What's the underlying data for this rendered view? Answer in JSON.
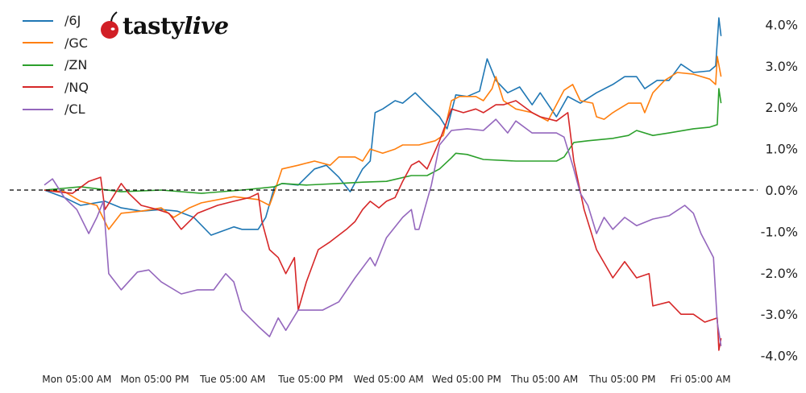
{
  "logo": {
    "brand": "tastylive",
    "part1": "tasty",
    "part2": "live"
  },
  "chart_data": {
    "type": "line",
    "title": "",
    "xlabel": "",
    "ylabel": "",
    "ylim": [
      -4.0,
      4.0
    ],
    "y_ticks": [
      "4.0%",
      "3.0%",
      "2.0%",
      "1.0%",
      "0.0%",
      "-1.0%",
      "-2.0%",
      "-3.0%",
      "-4.0%"
    ],
    "y_tick_values": [
      4,
      3,
      2,
      1,
      0,
      -1,
      -2,
      -3,
      -4
    ],
    "y_axis_side": "right",
    "x_ticks": [
      "Mon 05:00 AM",
      "Mon 05:00 PM",
      "Tue 05:00 AM",
      "Tue 05:00 PM",
      "Wed 05:00 AM",
      "Wed 05:00 PM",
      "Thu 05:00 AM",
      "Thu 05:00 PM",
      "Fri 05:00 AM"
    ],
    "reference_line": {
      "y": 0,
      "style": "dashed",
      "color": "#000000"
    },
    "grid": false,
    "legend_position": "top-left",
    "series": [
      {
        "name": "/6J",
        "color": "#1f77b4",
        "points": [
          [
            "Mon 00:00",
            0
          ],
          [
            "Mon 03:05",
            -0.18
          ],
          [
            "Mon 05:35",
            -0.37
          ],
          [
            "Mon 09:20",
            -0.27
          ],
          [
            "Mon 11:50",
            -0.43
          ],
          [
            "Mon 14:55",
            -0.51
          ],
          [
            "Mon 18:00",
            -0.47
          ],
          [
            "Mon 20:30",
            -0.51
          ],
          [
            "Mon 23:00",
            -0.66
          ],
          [
            "Tue 01:40",
            -1.09
          ],
          [
            "Tue 05:10",
            -0.89
          ],
          [
            "Tue 06:25",
            -0.95
          ],
          [
            "Tue 08:55",
            -0.95
          ],
          [
            "Tue 10:05",
            -0.66
          ],
          [
            "Tue 11:25",
            0.08
          ],
          [
            "Tue 12:35",
            0.16
          ],
          [
            "Tue 15:05",
            0.12
          ],
          [
            "Tue 17:35",
            0.51
          ],
          [
            "Tue 19:25",
            0.6
          ],
          [
            "Tue 21:20",
            0.31
          ],
          [
            "Tue 23:05",
            -0.04
          ],
          [
            "Wed 01:00",
            0.51
          ],
          [
            "Wed 02:10",
            0.7
          ],
          [
            "Wed 02:55",
            1.87
          ],
          [
            "Wed 04:05",
            1.96
          ],
          [
            "Wed 06:00",
            2.16
          ],
          [
            "Wed 07:10",
            2.1
          ],
          [
            "Wed 09:05",
            2.35
          ],
          [
            "Wed 10:55",
            2.06
          ],
          [
            "Wed 12:50",
            1.77
          ],
          [
            "Wed 14:00",
            1.48
          ],
          [
            "Wed 15:20",
            2.3
          ],
          [
            "Wed 17:05",
            2.26
          ],
          [
            "Wed 19:00",
            2.39
          ],
          [
            "Wed 20:10",
            3.17
          ],
          [
            "Wed 21:30",
            2.65
          ],
          [
            "Wed 23:20",
            2.35
          ],
          [
            "Thu 01:10",
            2.49
          ],
          [
            "Thu 03:05",
            2.06
          ],
          [
            "Thu 04:20",
            2.35
          ],
          [
            "Thu 06:50",
            1.77
          ],
          [
            "Thu 08:35",
            2.26
          ],
          [
            "Thu 10:30",
            2.1
          ],
          [
            "Thu 13:00",
            2.35
          ],
          [
            "Thu 15:30",
            2.55
          ],
          [
            "Thu 17:20",
            2.74
          ],
          [
            "Thu 19:10",
            2.74
          ],
          [
            "Thu 20:25",
            2.45
          ],
          [
            "Thu 22:20",
            2.65
          ],
          [
            "Fri 00:10",
            2.65
          ],
          [
            "Fri 02:00",
            3.04
          ],
          [
            "Fri 03:55",
            2.84
          ],
          [
            "Fri 06:25",
            2.88
          ],
          [
            "Fri 07:20",
            3.0
          ],
          [
            "Fri 07:50",
            4.16
          ],
          [
            "Fri 08:10",
            3.72
          ]
        ]
      },
      {
        "name": "/GC",
        "color": "#ff7f0e",
        "points": [
          [
            "Mon 00:00",
            0
          ],
          [
            "Mon 03:05",
            -0.04
          ],
          [
            "Mon 05:35",
            -0.27
          ],
          [
            "Mon 08:05",
            -0.37
          ],
          [
            "Mon 09:55",
            -0.95
          ],
          [
            "Mon 11:50",
            -0.56
          ],
          [
            "Mon 14:55",
            -0.51
          ],
          [
            "Mon 18:00",
            -0.43
          ],
          [
            "Mon 19:55",
            -0.66
          ],
          [
            "Mon 22:20",
            -0.43
          ],
          [
            "Tue 00:10",
            -0.31
          ],
          [
            "Tue 05:10",
            -0.16
          ],
          [
            "Tue 08:55",
            -0.23
          ],
          [
            "Tue 10:40",
            -0.37
          ],
          [
            "Tue 11:25",
            -0.04
          ],
          [
            "Tue 12:35",
            0.51
          ],
          [
            "Tue 15:05",
            0.6
          ],
          [
            "Tue 17:35",
            0.7
          ],
          [
            "Tue 20:00",
            0.6
          ],
          [
            "Tue 21:20",
            0.8
          ],
          [
            "Tue 23:50",
            0.8
          ],
          [
            "Wed 01:00",
            0.7
          ],
          [
            "Wed 02:10",
            0.99
          ],
          [
            "Wed 04:05",
            0.89
          ],
          [
            "Wed 06:00",
            0.99
          ],
          [
            "Wed 07:10",
            1.09
          ],
          [
            "Wed 09:40",
            1.09
          ],
          [
            "Wed 12:10",
            1.19
          ],
          [
            "Wed 13:25",
            1.32
          ],
          [
            "Wed 14:40",
            2.16
          ],
          [
            "Wed 15:55",
            2.26
          ],
          [
            "Wed 18:25",
            2.26
          ],
          [
            "Wed 19:35",
            2.16
          ],
          [
            "Wed 20:55",
            2.45
          ],
          [
            "Wed 21:30",
            2.74
          ],
          [
            "Wed 22:40",
            2.16
          ],
          [
            "Thu 00:35",
            1.96
          ],
          [
            "Thu 03:05",
            1.87
          ],
          [
            "Thu 05:30",
            1.67
          ],
          [
            "Thu 08:00",
            2.41
          ],
          [
            "Thu 09:20",
            2.55
          ],
          [
            "Thu 10:30",
            2.16
          ],
          [
            "Thu 12:25",
            2.1
          ],
          [
            "Thu 13:00",
            1.77
          ],
          [
            "Thu 14:10",
            1.71
          ],
          [
            "Thu 15:30",
            1.87
          ],
          [
            "Thu 17:55",
            2.1
          ],
          [
            "Thu 19:50",
            2.1
          ],
          [
            "Thu 20:25",
            1.87
          ],
          [
            "Thu 21:40",
            2.35
          ],
          [
            "Thu 23:30",
            2.65
          ],
          [
            "Fri 01:25",
            2.84
          ],
          [
            "Fri 03:55",
            2.8
          ],
          [
            "Fri 06:25",
            2.68
          ],
          [
            "Fri 07:20",
            2.55
          ],
          [
            "Fri 07:35",
            3.23
          ],
          [
            "Fri 08:10",
            2.74
          ]
        ]
      },
      {
        "name": "/ZN",
        "color": "#2ca02c",
        "points": [
          [
            "Mon 00:00",
            0
          ],
          [
            "Mon 05:35",
            0.08
          ],
          [
            "Mon 11:50",
            -0.04
          ],
          [
            "Mon 18:00",
            0
          ],
          [
            "Tue 00:10",
            -0.08
          ],
          [
            "Tue 06:25",
            0
          ],
          [
            "Tue 11:25",
            0.08
          ],
          [
            "Tue 12:35",
            0.16
          ],
          [
            "Tue 16:20",
            0.12
          ],
          [
            "Tue 21:20",
            0.16
          ],
          [
            "Wed 01:00",
            0.19
          ],
          [
            "Wed 04:40",
            0.21
          ],
          [
            "Wed 08:30",
            0.35
          ],
          [
            "Wed 10:55",
            0.35
          ],
          [
            "Wed 12:50",
            0.51
          ],
          [
            "Wed 14:40",
            0.78
          ],
          [
            "Wed 15:20",
            0.89
          ],
          [
            "Wed 17:05",
            0.86
          ],
          [
            "Wed 19:35",
            0.74
          ],
          [
            "Thu 00:35",
            0.7
          ],
          [
            "Thu 03:05",
            0.7
          ],
          [
            "Thu 06:50",
            0.7
          ],
          [
            "Thu 08:00",
            0.8
          ],
          [
            "Thu 09:30",
            1.15
          ],
          [
            "Thu 11:40",
            1.19
          ],
          [
            "Thu 15:30",
            1.25
          ],
          [
            "Thu 17:55",
            1.32
          ],
          [
            "Thu 19:10",
            1.44
          ],
          [
            "Thu 21:40",
            1.32
          ],
          [
            "Fri 00:10",
            1.38
          ],
          [
            "Fri 03:55",
            1.48
          ],
          [
            "Fri 06:25",
            1.52
          ],
          [
            "Fri 07:35",
            1.58
          ],
          [
            "Fri 07:50",
            2.45
          ],
          [
            "Fri 08:10",
            2.1
          ]
        ]
      },
      {
        "name": "/NQ",
        "color": "#d62728",
        "points": [
          [
            "Mon 00:00",
            0
          ],
          [
            "Mon 01:50",
            -0.04
          ],
          [
            "Mon 04:20",
            -0.08
          ],
          [
            "Mon 06:50",
            0.21
          ],
          [
            "Mon 08:40",
            0.31
          ],
          [
            "Mon 09:20",
            -0.47
          ],
          [
            "Mon 10:30",
            -0.18
          ],
          [
            "Mon 11:50",
            0.16
          ],
          [
            "Mon 13:00",
            -0.08
          ],
          [
            "Mon 14:55",
            -0.37
          ],
          [
            "Mon 17:25",
            -0.47
          ],
          [
            "Mon 19:10",
            -0.56
          ],
          [
            "Mon 21:05",
            -0.95
          ],
          [
            "Mon 23:35",
            -0.56
          ],
          [
            "Tue 02:40",
            -0.37
          ],
          [
            "Tue 05:10",
            -0.27
          ],
          [
            "Tue 07:35",
            -0.18
          ],
          [
            "Tue 08:55",
            -0.08
          ],
          [
            "Tue 09:30",
            -0.76
          ],
          [
            "Tue 10:40",
            -1.44
          ],
          [
            "Tue 12:00",
            -1.63
          ],
          [
            "Tue 13:10",
            -2.02
          ],
          [
            "Tue 14:30",
            -1.63
          ],
          [
            "Tue 15:05",
            -2.9
          ],
          [
            "Tue 16:20",
            -2.22
          ],
          [
            "Tue 18:10",
            -1.44
          ],
          [
            "Tue 20:00",
            -1.25
          ],
          [
            "Tue 22:30",
            -0.95
          ],
          [
            "Tue 23:50",
            -0.76
          ],
          [
            "Wed 01:00",
            -0.47
          ],
          [
            "Wed 02:10",
            -0.27
          ],
          [
            "Wed 03:30",
            -0.43
          ],
          [
            "Wed 04:40",
            -0.27
          ],
          [
            "Wed 06:00",
            -0.18
          ],
          [
            "Wed 07:10",
            0.21
          ],
          [
            "Wed 08:30",
            0.6
          ],
          [
            "Wed 09:40",
            0.7
          ],
          [
            "Wed 10:55",
            0.51
          ],
          [
            "Wed 12:50",
            1.19
          ],
          [
            "Wed 14:40",
            1.96
          ],
          [
            "Wed 16:30",
            1.87
          ],
          [
            "Wed 18:25",
            1.96
          ],
          [
            "Wed 19:35",
            1.87
          ],
          [
            "Wed 21:30",
            2.06
          ],
          [
            "Wed 22:40",
            2.06
          ],
          [
            "Thu 00:35",
            2.16
          ],
          [
            "Thu 03:05",
            1.87
          ],
          [
            "Thu 04:20",
            1.77
          ],
          [
            "Thu 06:50",
            1.67
          ],
          [
            "Thu 08:35",
            1.87
          ],
          [
            "Thu 09:30",
            0.7
          ],
          [
            "Thu 11:05",
            -0.47
          ],
          [
            "Thu 13:00",
            -1.44
          ],
          [
            "Thu 15:30",
            -2.12
          ],
          [
            "Thu 17:20",
            -1.73
          ],
          [
            "Thu 19:10",
            -2.12
          ],
          [
            "Thu 21:05",
            -2.02
          ],
          [
            "Thu 21:40",
            -2.8
          ],
          [
            "Fri 00:10",
            -2.7
          ],
          [
            "Fri 02:00",
            -3.0
          ],
          [
            "Fri 03:55",
            -3.0
          ],
          [
            "Fri 05:40",
            -3.19
          ],
          [
            "Fri 07:35",
            -3.09
          ],
          [
            "Fri 07:50",
            -3.87
          ],
          [
            "Fri 08:10",
            -3.58
          ]
        ]
      },
      {
        "name": "/CL",
        "color": "#9467bd",
        "points": [
          [
            "Mon 00:00",
            0.12
          ],
          [
            "Mon 01:15",
            0.27
          ],
          [
            "Mon 03:05",
            -0.18
          ],
          [
            "Mon 05:00",
            -0.47
          ],
          [
            "Mon 06:50",
            -1.05
          ],
          [
            "Mon 08:05",
            -0.66
          ],
          [
            "Mon 09:05",
            -0.27
          ],
          [
            "Mon 09:55",
            -2.02
          ],
          [
            "Mon 11:50",
            -2.41
          ],
          [
            "Mon 14:20",
            -1.98
          ],
          [
            "Mon 16:05",
            -1.93
          ],
          [
            "Mon 18:00",
            -2.22
          ],
          [
            "Mon 21:05",
            -2.51
          ],
          [
            "Mon 23:35",
            -2.41
          ],
          [
            "Tue 02:05",
            -2.41
          ],
          [
            "Tue 03:55",
            -2.02
          ],
          [
            "Tue 05:10",
            -2.22
          ],
          [
            "Tue 06:25",
            -2.9
          ],
          [
            "Tue 08:55",
            -3.29
          ],
          [
            "Tue 10:40",
            -3.54
          ],
          [
            "Tue 12:00",
            -3.09
          ],
          [
            "Tue 13:10",
            -3.39
          ],
          [
            "Tue 15:05",
            -2.9
          ],
          [
            "Tue 18:50",
            -2.9
          ],
          [
            "Tue 21:20",
            -2.7
          ],
          [
            "Tue 23:50",
            -2.12
          ],
          [
            "Wed 02:10",
            -1.63
          ],
          [
            "Wed 02:55",
            -1.83
          ],
          [
            "Wed 04:40",
            -1.15
          ],
          [
            "Wed 07:10",
            -0.66
          ],
          [
            "Wed 08:30",
            -0.47
          ],
          [
            "Wed 09:05",
            -0.95
          ],
          [
            "Wed 09:40",
            -0.95
          ],
          [
            "Wed 11:35",
            0.12
          ],
          [
            "Wed 12:50",
            1.09
          ],
          [
            "Wed 14:40",
            1.44
          ],
          [
            "Wed 17:05",
            1.48
          ],
          [
            "Wed 19:35",
            1.44
          ],
          [
            "Wed 21:30",
            1.71
          ],
          [
            "Wed 23:20",
            1.38
          ],
          [
            "Thu 00:35",
            1.67
          ],
          [
            "Thu 03:05",
            1.38
          ],
          [
            "Thu 06:50",
            1.38
          ],
          [
            "Thu 08:00",
            1.28
          ],
          [
            "Thu 09:20",
            0.6
          ],
          [
            "Thu 10:30",
            -0.08
          ],
          [
            "Thu 11:40",
            -0.37
          ],
          [
            "Thu 13:00",
            -1.05
          ],
          [
            "Thu 14:10",
            -0.66
          ],
          [
            "Thu 15:30",
            -0.95
          ],
          [
            "Thu 17:20",
            -0.66
          ],
          [
            "Thu 19:10",
            -0.86
          ],
          [
            "Thu 21:40",
            -0.7
          ],
          [
            "Fri 00:10",
            -0.62
          ],
          [
            "Fri 02:35",
            -0.37
          ],
          [
            "Fri 03:55",
            -0.56
          ],
          [
            "Fri 05:05",
            -1.05
          ],
          [
            "Fri 07:00",
            -1.63
          ],
          [
            "Fri 07:35",
            -3.19
          ],
          [
            "Fri 08:10",
            -3.77
          ]
        ]
      }
    ]
  }
}
